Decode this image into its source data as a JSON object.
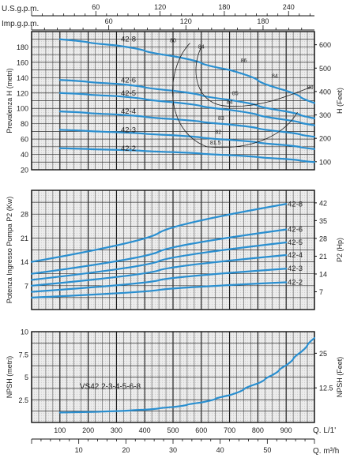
{
  "top_axes": {
    "usgpm": {
      "label": "U.S.g.p.m.",
      "ticks": [
        60,
        120,
        180,
        240
      ],
      "per_m3h": 4.4029
    },
    "impgpm": {
      "label": "Imp.g.p.m.",
      "ticks": [
        60,
        120,
        180
      ],
      "per_m3h": 3.6662
    }
  },
  "bottom_axes": {
    "lmin": {
      "label": "Q. L/1'",
      "ticks": [
        100,
        200,
        300,
        400,
        500,
        600,
        700,
        800,
        900
      ]
    },
    "m3h": {
      "label": "Q. m³/h",
      "ticks": [
        10,
        20,
        30,
        40,
        50
      ]
    }
  },
  "chart_data": [
    {
      "type": "line",
      "name": "head",
      "ylabel": "Prevalenza H (metri)",
      "ylabel_right": "H (Feet)",
      "xlim": [
        0,
        1000
      ],
      "ylim": [
        20,
        200
      ],
      "yticks": [
        20,
        40,
        60,
        80,
        100,
        120,
        140,
        160,
        180
      ],
      "yticks_right": [
        100,
        200,
        300,
        400,
        500,
        600
      ],
      "series": [
        {
          "name": "42-8",
          "x": [
            100,
            300,
            500,
            700,
            900,
            1000
          ],
          "y": [
            190,
            182,
            168,
            150,
            123,
            107
          ]
        },
        {
          "name": "42-6",
          "x": [
            100,
            300,
            500,
            700,
            900,
            1000
          ],
          "y": [
            137,
            132,
            123,
            111,
            96,
            87
          ]
        },
        {
          "name": "42-5",
          "x": [
            100,
            300,
            500,
            700,
            900,
            1000
          ],
          "y": [
            120,
            116,
            108,
            98,
            85,
            78
          ]
        },
        {
          "name": "42-4",
          "x": [
            100,
            300,
            500,
            700,
            900,
            1000
          ],
          "y": [
            96,
            92,
            86,
            79,
            69,
            63
          ]
        },
        {
          "name": "42-3",
          "x": [
            100,
            300,
            500,
            700,
            900,
            1000
          ],
          "y": [
            72,
            69,
            65,
            59,
            52,
            47
          ]
        },
        {
          "name": "42-2",
          "x": [
            100,
            300,
            500,
            700,
            900,
            1000
          ],
          "y": [
            48,
            46,
            43,
            39,
            34,
            30
          ]
        }
      ],
      "annotations": [
        {
          "text": "80",
          "x": 500,
          "y": 186
        },
        {
          "text": "84",
          "x": 600,
          "y": 178
        },
        {
          "text": "86",
          "x": 750,
          "y": 160
        },
        {
          "text": "84",
          "x": 860,
          "y": 140
        },
        {
          "text": "80",
          "x": 985,
          "y": 125
        },
        {
          "text": "85",
          "x": 720,
          "y": 117
        },
        {
          "text": "84",
          "x": 700,
          "y": 106
        },
        {
          "text": "83",
          "x": 670,
          "y": 85
        },
        {
          "text": "82",
          "x": 660,
          "y": 67
        },
        {
          "text": "81.5",
          "x": 650,
          "y": 53
        }
      ]
    },
    {
      "type": "line",
      "name": "power",
      "ylabel": "Potenza Ingresso Pompa P2 (Kw)",
      "ylabel_right": "P2 (Hp)",
      "xlim": [
        0,
        1000
      ],
      "ylim": [
        0,
        35
      ],
      "yticks": [
        7,
        14,
        21,
        28
      ],
      "yticks_right": [
        7,
        14,
        21,
        28,
        35,
        42
      ],
      "series": [
        {
          "name": "42-8",
          "x": [
            0,
            900
          ],
          "y": [
            14,
            31
          ]
        },
        {
          "name": "42-6",
          "x": [
            0,
            900
          ],
          "y": [
            10.5,
            23.5
          ]
        },
        {
          "name": "42-5",
          "x": [
            0,
            900
          ],
          "y": [
            8.7,
            19.7
          ]
        },
        {
          "name": "42-4",
          "x": [
            0,
            900
          ],
          "y": [
            7,
            16
          ]
        },
        {
          "name": "42-3",
          "x": [
            0,
            900
          ],
          "y": [
            5.2,
            12
          ]
        },
        {
          "name": "42-2",
          "x": [
            0,
            900
          ],
          "y": [
            3.5,
            8
          ]
        }
      ]
    },
    {
      "type": "line",
      "name": "npsh",
      "ylabel": "NPSH (metri)",
      "ylabel_right": "NPSH (Feet)",
      "xlim": [
        0,
        1000
      ],
      "ylim": [
        0,
        10
      ],
      "yticks": [
        2.5,
        5,
        7.5,
        10
      ],
      "yticks_right": [
        12.5,
        25
      ],
      "annotation": "VS42 2-3-4-5-6-8",
      "series": [
        {
          "name": "VS42 2-3-4-5-6-8",
          "x": [
            100,
            200,
            300,
            400,
            500,
            600,
            700,
            800,
            850,
            900,
            950,
            1000
          ],
          "y": [
            1.1,
            1.15,
            1.25,
            1.4,
            1.7,
            2.2,
            3.0,
            4.3,
            5.2,
            6.3,
            7.7,
            9.3
          ]
        }
      ]
    }
  ]
}
